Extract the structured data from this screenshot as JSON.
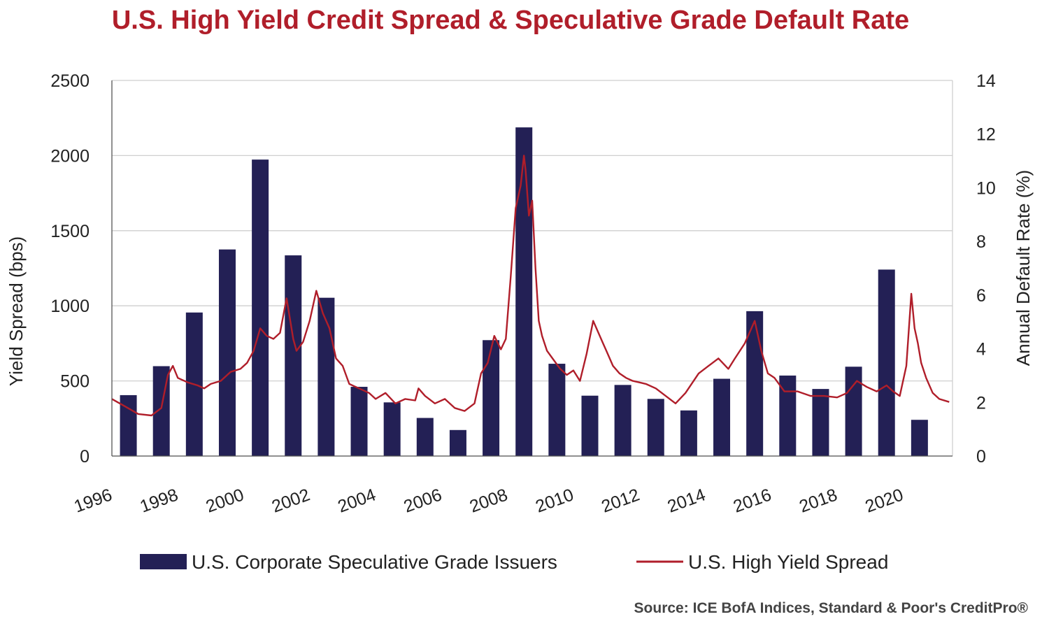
{
  "chart_data": {
    "type": "bar+line",
    "title": "U.S. High Yield Credit Spread & Speculative Grade Default Rate",
    "ylabel_left": "Yield Spread (bps)",
    "ylabel_right": "Annual Default Rate (%)",
    "ylim_left": [
      0,
      2500
    ],
    "ylim_right": [
      0,
      14
    ],
    "yticks_left": [
      "0",
      "500",
      "1000",
      "1500",
      "2000",
      "2500"
    ],
    "yticks_right": [
      "0",
      "2",
      "4",
      "6",
      "8",
      "10",
      "12",
      "14"
    ],
    "xticks": [
      "1996",
      "1998",
      "2000",
      "2002",
      "2004",
      "2006",
      "2008",
      "2010",
      "2012",
      "2014",
      "2016",
      "2018",
      "2020"
    ],
    "xlim": [
      1996,
      2021.5
    ],
    "grid": true,
    "legend_position": "bottom",
    "series": [
      {
        "name": "U.S. Corporate Speculative Grade Issuers",
        "kind": "bar",
        "axis": "right",
        "color": "#232055",
        "years": [
          1996,
          1997,
          1998,
          1999,
          2000,
          2001,
          2002,
          2003,
          2004,
          2005,
          2006,
          2007,
          2008,
          2009,
          2010,
          2011,
          2012,
          2013,
          2014,
          2015,
          2016,
          2017,
          2018,
          2019,
          2020,
          2021
        ],
        "values": [
          2.27,
          3.35,
          5.35,
          7.7,
          11.05,
          7.48,
          5.9,
          2.58,
          2.0,
          1.42,
          0.97,
          4.32,
          12.25,
          3.44,
          2.25,
          2.65,
          2.13,
          1.7,
          2.88,
          5.4,
          3.0,
          2.5,
          3.33,
          6.95,
          1.35,
          null
        ]
      },
      {
        "name": "U.S. High Yield Spread",
        "kind": "line",
        "axis": "left",
        "color": "#b01e2a",
        "x": [
          1996.0,
          1996.4,
          1996.8,
          1997.2,
          1997.5,
          1997.7,
          1997.85,
          1998.0,
          1998.3,
          1998.6,
          1998.8,
          1999.0,
          1999.3,
          1999.6,
          1999.9,
          2000.1,
          2000.3,
          2000.5,
          2000.7,
          2000.9,
          2001.1,
          2001.3,
          2001.5,
          2001.6,
          2001.8,
          2002.0,
          2002.2,
          2002.4,
          2002.6,
          2002.8,
          2003.0,
          2003.2,
          2003.5,
          2003.8,
          2004.0,
          2004.3,
          2004.6,
          2004.9,
          2005.2,
          2005.3,
          2005.5,
          2005.8,
          2006.1,
          2006.4,
          2006.7,
          2007.0,
          2007.2,
          2007.4,
          2007.6,
          2007.8,
          2007.95,
          2008.1,
          2008.25,
          2008.4,
          2008.5,
          2008.55,
          2008.65,
          2008.75,
          2008.85,
          2008.95,
          2009.05,
          2009.2,
          2009.4,
          2009.6,
          2009.8,
          2010.0,
          2010.2,
          2010.4,
          2010.6,
          2010.9,
          2011.0,
          2011.2,
          2011.4,
          2011.6,
          2011.8,
          2012.0,
          2012.2,
          2012.5,
          2012.8,
          2013.1,
          2013.4,
          2013.8,
          2014.1,
          2014.4,
          2014.7,
          2014.9,
          2015.2,
          2015.5,
          2015.7,
          2015.9,
          2016.1,
          2016.4,
          2016.8,
          2017.2,
          2017.6,
          2018.0,
          2018.3,
          2018.6,
          2018.9,
          2019.2,
          2019.5,
          2019.7,
          2019.9,
          2020.1,
          2020.25,
          2020.35,
          2020.45,
          2020.55,
          2020.7,
          2020.9,
          2021.1,
          2021.4
        ],
        "y": [
          380,
          330,
          280,
          270,
          320,
          540,
          600,
          520,
          490,
          470,
          450,
          480,
          500,
          560,
          580,
          620,
          700,
          850,
          800,
          780,
          820,
          1050,
          780,
          700,
          760,
          900,
          1100,
          950,
          850,
          650,
          600,
          480,
          450,
          420,
          380,
          420,
          350,
          380,
          370,
          450,
          400,
          350,
          380,
          320,
          300,
          350,
          550,
          620,
          800,
          710,
          780,
          1200,
          1650,
          1800,
          2000,
          1900,
          1600,
          1700,
          1250,
          900,
          800,
          700,
          640,
          580,
          540,
          570,
          500,
          680,
          900,
          750,
          700,
          600,
          550,
          520,
          500,
          490,
          480,
          450,
          400,
          350,
          420,
          550,
          600,
          650,
          580,
          650,
          750,
          900,
          700,
          550,
          520,
          430,
          430,
          400,
          400,
          390,
          420,
          500,
          460,
          430,
          470,
          430,
          400,
          600,
          1080,
          850,
          750,
          620,
          520,
          420,
          380,
          360
        ]
      }
    ]
  },
  "legend": {
    "bar_label": "U.S. Corporate Speculative Grade Issuers",
    "line_label": "U.S. High Yield Spread"
  },
  "source": "Source: ICE BofA Indices, Standard & Poor's CreditPro®"
}
